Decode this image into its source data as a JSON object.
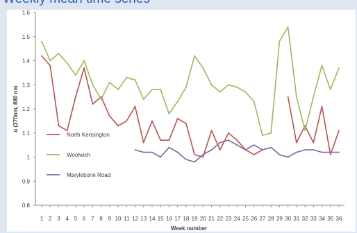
{
  "header": {
    "title": "Weekly mean time series"
  },
  "colors": {
    "background_band": "#dde6f1",
    "title_color": "#1f62b5",
    "North Kensington": "#c0504d",
    "Woolwich": "#9bbb59",
    "Marylebone Road": "#8064a2"
  },
  "chart_data": {
    "type": "line",
    "xlabel": "Week number",
    "ylabel": "α (370nm, 880 nm",
    "ylim": [
      0.8,
      1.6
    ],
    "yticks": [
      "0.8",
      "0.9",
      "1",
      "1.1",
      "1.2",
      "1.3",
      "1.4",
      "1.5",
      "1.6"
    ],
    "categories": [
      "1",
      "2",
      "3",
      "4",
      "5",
      "6",
      "7",
      "8",
      "9",
      "10",
      "11",
      "12",
      "13",
      "14",
      "15",
      "16",
      "17",
      "18",
      "19",
      "20",
      "21",
      "22",
      "23",
      "24",
      "25",
      "26",
      "27",
      "28",
      "29",
      "30",
      "31",
      "32",
      "33",
      "34",
      "35",
      "36"
    ],
    "legend_position": "left",
    "grid": false,
    "series": [
      {
        "name": "North Kensington",
        "color": "#c0504d",
        "values": [
          1.42,
          1.38,
          1.13,
          1.11,
          1.25,
          1.37,
          1.22,
          1.25,
          1.17,
          1.13,
          1.15,
          1.21,
          1.06,
          1.15,
          1.07,
          1.07,
          1.16,
          1.14,
          1.01,
          1.0,
          1.11,
          1.03,
          1.1,
          1.07,
          1.03,
          1.01,
          1.03,
          1.04,
          null,
          1.25,
          1.06,
          1.13,
          1.06,
          1.21,
          1.01,
          1.11
        ]
      },
      {
        "name": "Woolwich",
        "color": "#9bbb59",
        "values": [
          1.48,
          1.4,
          1.43,
          1.39,
          1.34,
          1.4,
          1.3,
          1.24,
          1.31,
          1.28,
          1.33,
          1.32,
          1.24,
          1.28,
          1.28,
          1.18,
          1.23,
          1.29,
          1.42,
          1.37,
          1.3,
          1.27,
          1.3,
          1.29,
          1.27,
          1.23,
          1.09,
          1.1,
          1.48,
          1.54,
          1.25,
          1.11,
          1.25,
          1.38,
          1.28,
          1.37
        ]
      },
      {
        "name": "Marylebone Road",
        "color": "#8064a2",
        "values": [
          null,
          null,
          null,
          null,
          null,
          null,
          null,
          null,
          null,
          null,
          null,
          1.03,
          1.02,
          1.02,
          1.0,
          1.04,
          1.02,
          0.99,
          0.98,
          1.01,
          1.03,
          1.06,
          1.07,
          1.05,
          1.03,
          1.05,
          1.03,
          1.04,
          1.01,
          1.0,
          1.02,
          1.03,
          1.03,
          1.02,
          1.02,
          1.02
        ]
      }
    ]
  }
}
